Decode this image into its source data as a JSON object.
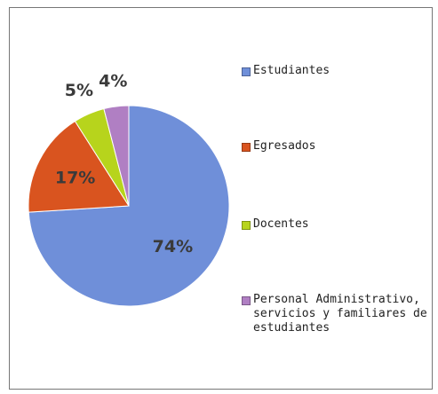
{
  "chart_data": {
    "type": "pie",
    "categories": [
      "Estudiantes",
      "Egresados",
      "Docentes",
      "Personal Administrativo, servicios y familiares de estudiantes"
    ],
    "values": [
      74,
      17,
      5,
      4
    ],
    "value_labels": [
      "74%",
      "17%",
      "5%",
      "4%"
    ],
    "colors": [
      "#6f8fd9",
      "#d9541f",
      "#b7d41c",
      "#b07fc3"
    ],
    "legend": "right"
  }
}
